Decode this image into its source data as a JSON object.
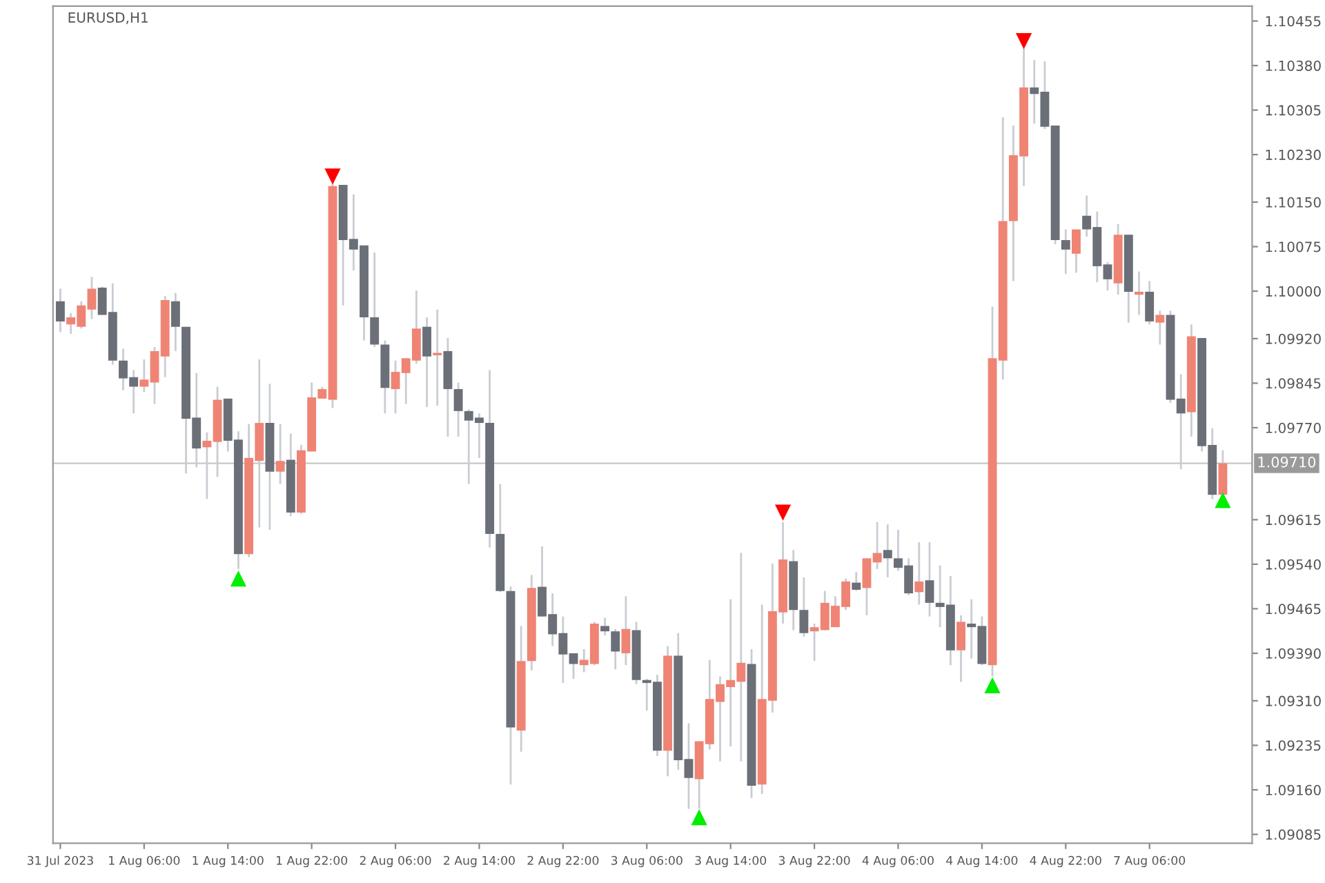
{
  "chart_data": {
    "type": "candlestick",
    "title": "EURUSD,H1",
    "categories": [
      "31 Jul 2023",
      null,
      null,
      null,
      null,
      null,
      null,
      null,
      "1 Aug 06:00",
      null,
      null,
      null,
      null,
      null,
      null,
      null,
      "1 Aug 14:00",
      null,
      null,
      null,
      null,
      null,
      null,
      null,
      "1 Aug 22:00",
      null,
      null,
      null,
      null,
      null,
      null,
      null,
      "2 Aug 06:00",
      null,
      null,
      null,
      null,
      null,
      null,
      null,
      "2 Aug 14:00",
      null,
      null,
      null,
      null,
      null,
      null,
      null,
      "2 Aug 22:00",
      null,
      null,
      null,
      null,
      null,
      null,
      null,
      "3 Aug 06:00",
      null,
      null,
      null,
      null,
      null,
      null,
      null,
      "3 Aug 14:00",
      null,
      null,
      null,
      null,
      null,
      null,
      null,
      "3 Aug 22:00",
      null,
      null,
      null,
      null,
      null,
      null,
      null,
      "4 Aug 06:00",
      null,
      null,
      null,
      null,
      null,
      null,
      null,
      "4 Aug 14:00",
      null,
      null,
      null,
      null,
      null,
      null,
      null,
      "4 Aug 22:00",
      null,
      null,
      null,
      null,
      null,
      null,
      null,
      "7 Aug 06:00",
      null,
      null,
      null,
      null,
      null,
      null,
      null
    ],
    "ohlc": [
      [
        1.09983,
        1.10004,
        1.09931,
        1.09949
      ],
      [
        1.09944,
        1.09963,
        1.09928,
        1.09956
      ],
      [
        1.0994,
        1.09983,
        1.09937,
        1.09976
      ],
      [
        1.09969,
        1.10024,
        1.09953,
        1.10004
      ],
      [
        1.10006,
        1.10008,
        1.0996,
        1.0996
      ],
      [
        1.09965,
        1.10013,
        1.09876,
        1.09883
      ],
      [
        1.09883,
        1.09903,
        1.09833,
        1.09853
      ],
      [
        1.09855,
        1.09867,
        1.09794,
        1.09839
      ],
      [
        1.09839,
        1.09885,
        1.0983,
        1.09851
      ],
      [
        1.09846,
        1.09906,
        1.0981,
        1.09899
      ],
      [
        1.0989,
        1.09992,
        1.09855,
        1.09985
      ],
      [
        1.09983,
        1.09997,
        1.09899,
        1.0994
      ],
      [
        1.0994,
        1.0994,
        1.09693,
        1.09785
      ],
      [
        1.09787,
        1.09862,
        1.09703,
        1.09735
      ],
      [
        1.09737,
        1.09762,
        1.0965,
        1.09748
      ],
      [
        1.09746,
        1.09839,
        1.09687,
        1.09817
      ],
      [
        1.09819,
        1.09819,
        1.0973,
        1.09748
      ],
      [
        1.0975,
        1.09764,
        1.09532,
        1.09557
      ],
      [
        1.09557,
        1.09776,
        1.09552,
        1.09719
      ],
      [
        1.09714,
        1.09885,
        1.09602,
        1.09778
      ],
      [
        1.09778,
        1.09844,
        1.09598,
        1.09696
      ],
      [
        1.09696,
        1.09776,
        1.09675,
        1.09714
      ],
      [
        1.09716,
        1.0976,
        1.09621,
        1.09627
      ],
      [
        1.09627,
        1.09741,
        1.09625,
        1.09732
      ],
      [
        1.0973,
        1.09846,
        1.0973,
        1.09821
      ],
      [
        1.09819,
        1.09839,
        1.09819,
        1.09835
      ],
      [
        1.09817,
        1.10188,
        1.09803,
        1.10177
      ],
      [
        1.10179,
        1.10179,
        1.09976,
        1.10086
      ],
      [
        1.10088,
        1.10163,
        1.10035,
        1.1007
      ],
      [
        1.10077,
        1.10077,
        1.09917,
        1.09956
      ],
      [
        1.09956,
        1.10065,
        1.09906,
        1.0991
      ],
      [
        1.0991,
        1.09917,
        1.09794,
        1.09837
      ],
      [
        1.09835,
        1.09883,
        1.09794,
        1.09864
      ],
      [
        1.09862,
        1.09887,
        1.0981,
        1.09887
      ],
      [
        1.09883,
        1.10001,
        1.09878,
        1.09937
      ],
      [
        1.0994,
        1.09956,
        1.09805,
        1.0989
      ],
      [
        1.09892,
        1.09969,
        1.09807,
        1.09896
      ],
      [
        1.09899,
        1.09921,
        1.09755,
        1.09835
      ],
      [
        1.09835,
        1.09846,
        1.09755,
        1.09798
      ],
      [
        1.09798,
        1.09801,
        1.09675,
        1.09782
      ],
      [
        1.09787,
        1.09794,
        1.09719,
        1.09778
      ],
      [
        1.09778,
        1.09867,
        1.09568,
        1.09591
      ],
      [
        1.09591,
        1.09675,
        1.09493,
        1.09495
      ],
      [
        1.09495,
        1.09502,
        1.09169,
        1.09265
      ],
      [
        1.0926,
        1.09436,
        1.09224,
        1.09377
      ],
      [
        1.09377,
        1.09522,
        1.09361,
        1.095
      ],
      [
        1.09502,
        1.0957,
        1.09452,
        1.09452
      ],
      [
        1.09456,
        1.09491,
        1.09402,
        1.09422
      ],
      [
        1.09424,
        1.09452,
        1.0934,
        1.09388
      ],
      [
        1.0939,
        1.0939,
        1.09347,
        1.09372
      ],
      [
        1.0937,
        1.09397,
        1.09358,
        1.09379
      ],
      [
        1.09372,
        1.09443,
        1.0937,
        1.0944
      ],
      [
        1.09436,
        1.0945,
        1.0942,
        1.09427
      ],
      [
        1.09427,
        1.09431,
        1.09363,
        1.09393
      ],
      [
        1.0939,
        1.09486,
        1.0937,
        1.09431
      ],
      [
        1.09429,
        1.09443,
        1.09338,
        1.09345
      ],
      [
        1.09345,
        1.09347,
        1.09294,
        1.0934
      ],
      [
        1.09342,
        1.09354,
        1.09217,
        1.09226
      ],
      [
        1.09226,
        1.09402,
        1.09183,
        1.09386
      ],
      [
        1.09386,
        1.09424,
        1.09194,
        1.0921
      ],
      [
        1.09212,
        1.09272,
        1.09128,
        1.0918
      ],
      [
        1.09178,
        1.09242,
        1.09128,
        1.09242
      ],
      [
        1.09237,
        1.09379,
        1.09228,
        1.09313
      ],
      [
        1.09308,
        1.09351,
        1.09208,
        1.09338
      ],
      [
        1.09333,
        1.09481,
        1.09233,
        1.09345
      ],
      [
        1.09342,
        1.09559,
        1.09208,
        1.09374
      ],
      [
        1.09372,
        1.09397,
        1.09146,
        1.09167
      ],
      [
        1.09169,
        1.09472,
        1.09153,
        1.09313
      ],
      [
        1.0931,
        1.09541,
        1.0929,
        1.09461
      ],
      [
        1.09459,
        1.09611,
        1.0944,
        1.09548
      ],
      [
        1.09545,
        1.09564,
        1.09429,
        1.09463
      ],
      [
        1.09463,
        1.09518,
        1.09418,
        1.09424
      ],
      [
        1.09427,
        1.0944,
        1.09377,
        1.09434
      ],
      [
        1.09429,
        1.09495,
        1.09429,
        1.09475
      ],
      [
        1.09434,
        1.09486,
        1.09434,
        1.0947
      ],
      [
        1.09468,
        1.09516,
        1.09463,
        1.09511
      ],
      [
        1.09509,
        1.09527,
        1.09495,
        1.09497
      ],
      [
        1.095,
        1.0955,
        1.09454,
        1.0955
      ],
      [
        1.09543,
        1.09611,
        1.09532,
        1.09559
      ],
      [
        1.09564,
        1.09607,
        1.09518,
        1.0955
      ],
      [
        1.0955,
        1.09598,
        1.09529,
        1.09534
      ],
      [
        1.09538,
        1.0955,
        1.09488,
        1.09491
      ],
      [
        1.09493,
        1.09577,
        1.09472,
        1.09511
      ],
      [
        1.09513,
        1.09577,
        1.09452,
        1.09475
      ],
      [
        1.09475,
        1.09538,
        1.09434,
        1.09468
      ],
      [
        1.09472,
        1.0952,
        1.0937,
        1.09395
      ],
      [
        1.09395,
        1.09454,
        1.09342,
        1.09443
      ],
      [
        1.0944,
        1.09481,
        1.09381,
        1.09434
      ],
      [
        1.09436,
        1.09452,
        1.0937,
        1.09372
      ],
      [
        1.0937,
        1.09974,
        1.09351,
        1.09887
      ],
      [
        1.09883,
        1.10293,
        1.09851,
        1.10118
      ],
      [
        1.10118,
        1.10279,
        1.10017,
        1.10229
      ],
      [
        1.10227,
        1.10409,
        1.10177,
        1.10343
      ],
      [
        1.10343,
        1.10389,
        1.10282,
        1.10332
      ],
      [
        1.10336,
        1.10387,
        1.10273,
        1.10277
      ],
      [
        1.10279,
        1.10279,
        1.10079,
        1.10086
      ],
      [
        1.10086,
        1.10104,
        1.10029,
        1.1007
      ],
      [
        1.10063,
        1.10104,
        1.10031,
        1.10104
      ],
      [
        1.10127,
        1.10161,
        1.10092,
        1.10104
      ],
      [
        1.10108,
        1.10134,
        1.10015,
        1.10042
      ],
      [
        1.10045,
        1.10049,
        1.10001,
        1.1002
      ],
      [
        1.10013,
        1.10113,
        1.09994,
        1.10095
      ],
      [
        1.10095,
        1.10095,
        1.09947,
        1.09999
      ],
      [
        1.09994,
        1.10033,
        1.0996,
        1.09999
      ],
      [
        1.09999,
        1.10017,
        1.09944,
        1.09949
      ],
      [
        1.09947,
        1.09967,
        1.0991,
        1.0996
      ],
      [
        1.0996,
        1.09967,
        1.09812,
        1.09817
      ],
      [
        1.09819,
        1.0986,
        1.097,
        1.09794
      ],
      [
        1.09796,
        1.09944,
        1.09755,
        1.09924
      ],
      [
        1.09921,
        1.09921,
        1.0973,
        1.09739
      ],
      [
        1.09741,
        1.09769,
        1.0965,
        1.09657
      ],
      [
        1.09657,
        1.09732,
        1.09655,
        1.0971
      ]
    ],
    "colors": [
      "#6b6f77",
      "#ef8474",
      "#ef8474",
      "#ef8474",
      "#6b6f77",
      "#6b6f77",
      "#6b6f77",
      "#6b6f77",
      "#ef8474",
      "#ef8474",
      "#ef8474",
      "#6b6f77",
      "#6b6f77",
      "#6b6f77",
      "#ef8474",
      "#ef8474",
      "#6b6f77",
      "#6b6f77",
      "#ef8474",
      "#ef8474",
      "#6b6f77",
      "#ef8474",
      "#6b6f77",
      "#ef8474",
      "#ef8474",
      "#ef8474",
      "#ef8474",
      "#6b6f77",
      "#6b6f77",
      "#6b6f77",
      "#6b6f77",
      "#6b6f77",
      "#ef8474",
      "#ef8474",
      "#ef8474",
      "#6b6f77",
      "#ef8474",
      "#6b6f77",
      "#6b6f77",
      "#6b6f77",
      "#6b6f77",
      "#6b6f77",
      "#6b6f77",
      "#6b6f77",
      "#ef8474",
      "#ef8474",
      "#6b6f77",
      "#6b6f77",
      "#6b6f77",
      "#6b6f77",
      "#ef8474",
      "#ef8474",
      "#6b6f77",
      "#6b6f77",
      "#ef8474",
      "#6b6f77",
      "#6b6f77",
      "#6b6f77",
      "#ef8474",
      "#6b6f77",
      "#6b6f77",
      "#ef8474",
      "#ef8474",
      "#ef8474",
      "#ef8474",
      "#ef8474",
      "#6b6f77",
      "#ef8474",
      "#ef8474",
      "#ef8474",
      "#6b6f77",
      "#6b6f77",
      "#ef8474",
      "#ef8474",
      "#ef8474",
      "#ef8474",
      "#6b6f77",
      "#ef8474",
      "#ef8474",
      "#6b6f77",
      "#6b6f77",
      "#6b6f77",
      "#ef8474",
      "#6b6f77",
      "#6b6f77",
      "#6b6f77",
      "#ef8474",
      "#6b6f77",
      "#6b6f77",
      "#ef8474",
      "#ef8474",
      "#ef8474",
      "#ef8474",
      "#6b6f77",
      "#6b6f77",
      "#6b6f77",
      "#6b6f77",
      "#ef8474",
      "#6b6f77",
      "#6b6f77",
      "#6b6f77",
      "#ef8474",
      "#6b6f77",
      "#ef8474",
      "#6b6f77",
      "#ef8474",
      "#6b6f77",
      "#6b6f77",
      "#ef8474",
      "#6b6f77",
      "#6b6f77",
      "#ef8474"
    ],
    "series": [
      {
        "type": "scatter",
        "color": "#ff0000",
        "marker": "triangle-down",
        "values": [
          null,
          null,
          null,
          null,
          null,
          null,
          null,
          null,
          null,
          null,
          null,
          null,
          null,
          null,
          null,
          null,
          null,
          null,
          null,
          null,
          null,
          null,
          null,
          null,
          null,
          null,
          1.10193,
          null,
          null,
          null,
          null,
          null,
          null,
          null,
          null,
          null,
          null,
          null,
          null,
          null,
          null,
          null,
          null,
          null,
          null,
          null,
          null,
          null,
          null,
          null,
          null,
          null,
          null,
          null,
          null,
          null,
          null,
          null,
          null,
          null,
          null,
          null,
          null,
          null,
          null,
          null,
          null,
          null,
          null,
          1.09627,
          null,
          null,
          null,
          null,
          null,
          null,
          null,
          null,
          null,
          null,
          null,
          null,
          null,
          null,
          null,
          null,
          null,
          null,
          null,
          null,
          null,
          null,
          1.10421,
          null,
          null,
          null,
          null,
          null,
          null,
          null,
          null,
          null,
          null,
          null,
          null,
          null,
          null,
          null,
          null,
          null,
          null,
          null
        ]
      },
      {
        "type": "scatter",
        "color": "#00ee00",
        "marker": "triangle",
        "values": [
          null,
          null,
          null,
          null,
          null,
          null,
          null,
          null,
          null,
          null,
          null,
          null,
          null,
          null,
          null,
          null,
          null,
          1.09516,
          null,
          null,
          null,
          null,
          null,
          null,
          null,
          null,
          null,
          null,
          null,
          null,
          null,
          null,
          null,
          null,
          null,
          null,
          null,
          null,
          null,
          null,
          null,
          null,
          null,
          null,
          null,
          null,
          null,
          null,
          null,
          null,
          null,
          null,
          null,
          null,
          null,
          null,
          null,
          null,
          null,
          null,
          null,
          1.09114,
          null,
          null,
          null,
          null,
          null,
          null,
          null,
          null,
          null,
          null,
          null,
          null,
          null,
          null,
          null,
          null,
          null,
          null,
          null,
          null,
          null,
          null,
          null,
          null,
          null,
          null,
          null,
          1.09336,
          null,
          null,
          null,
          null,
          null,
          null,
          null,
          null,
          null,
          null,
          null,
          null,
          null,
          null,
          null,
          null,
          null,
          null,
          null,
          null,
          null,
          1.09648
        ]
      }
    ],
    "ylim": [
      1.0907,
      1.1048
    ],
    "yticks": [
      {
        "value": 1.10455,
        "label": "1.10455"
      },
      {
        "value": 1.1038,
        "label": "1.10380"
      },
      {
        "value": 1.10305,
        "label": "1.10305"
      },
      {
        "value": 1.1023,
        "label": "1.10230"
      },
      {
        "value": 1.1015,
        "label": "1.10150"
      },
      {
        "value": 1.10075,
        "label": "1.10075"
      },
      {
        "value": 1.1,
        "label": "1.10000"
      },
      {
        "value": 1.0992,
        "label": "1.09920"
      },
      {
        "value": 1.09845,
        "label": "1.09845"
      },
      {
        "value": 1.0977,
        "label": "1.09770"
      },
      {
        "value": 1.09615,
        "label": "1.09615"
      },
      {
        "value": 1.0954,
        "label": "1.09540"
      },
      {
        "value": 1.09465,
        "label": "1.09465"
      },
      {
        "value": 1.0939,
        "label": "1.09390"
      },
      {
        "value": 1.0931,
        "label": "1.09310"
      },
      {
        "value": 1.09235,
        "label": "1.09235"
      },
      {
        "value": 1.0916,
        "label": "1.09160"
      },
      {
        "value": 1.09085,
        "label": "1.09085"
      }
    ],
    "ref_lines": [
      {
        "axis": "y",
        "value": 1.0971,
        "label": "1.09710",
        "color": "#c8c8c8"
      }
    ],
    "grid": false,
    "legend": false
  }
}
